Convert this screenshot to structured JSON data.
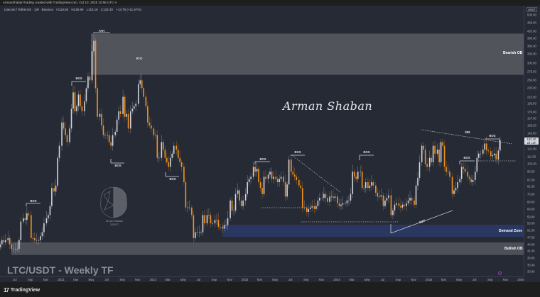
{
  "header": {
    "attribution": "ArmanShabanTrading created with TradingView.com, Oct 10, 2025 10:56 UTC-4",
    "symbol": "Litecoin / TetherUS · 1W · Binance",
    "open": "O118.85",
    "high": "H135.99",
    "low": "L115.16",
    "close": "C132.40",
    "change": "+13.75 (+11.57%)"
  },
  "chart_title": "LTC/USDT - Weekly TF",
  "watermark_signature": "Arman Shaban",
  "brand_logo": {
    "name": "Arman Shaban",
    "year": "2025 ©"
  },
  "footer": {
    "brand": "TradingView",
    "logo_glyph": "17"
  },
  "colors": {
    "background": "#262a35",
    "up": "#d1d4dc",
    "down": "#f7931a",
    "bearish_ob": "#5a5c63",
    "bullish_ob": "#55575e",
    "demand_zone": "#2b3a66"
  },
  "chart_data": {
    "type": "candlestick",
    "interval": "1W",
    "scale": "log",
    "currency": "USDT",
    "current_price": "132.40",
    "countdown": "2d 12h",
    "ylim": [
      33,
      500
    ],
    "y_ticks": [
      "500.00",
      "460.00",
      "420.00",
      "390.00",
      "360.00",
      "330.00",
      "300.00",
      "275.00",
      "250.00",
      "230.00",
      "210.00",
      "195.00",
      "179.00",
      "167.00",
      "155.00",
      "143.00",
      "121.00",
      "111.00",
      "103.00",
      "95.00",
      "87.00",
      "81.00",
      "75.00",
      "69.00",
      "64.00",
      "59.00",
      "55.00",
      "51.00",
      "47.50",
      "44.00",
      "41.00",
      "38.00",
      "35.40",
      "33.00"
    ],
    "x_ticks": [
      {
        "label": "Jul",
        "date": "2020-07"
      },
      {
        "label": "Sep",
        "date": "2020-09"
      },
      {
        "label": "Nov",
        "date": "2020-11"
      },
      {
        "label": "2021",
        "date": "2021-01"
      },
      {
        "label": "Mar",
        "date": "2021-03"
      },
      {
        "label": "May",
        "date": "2021-05"
      },
      {
        "label": "Jul",
        "date": "2021-07"
      },
      {
        "label": "Sep",
        "date": "2021-09"
      },
      {
        "label": "Nov",
        "date": "2021-11"
      },
      {
        "label": "2022",
        "date": "2022-01"
      },
      {
        "label": "Mar",
        "date": "2022-03"
      },
      {
        "label": "May",
        "date": "2022-05"
      },
      {
        "label": "Jul",
        "date": "2022-07"
      },
      {
        "label": "Sep",
        "date": "2022-09"
      },
      {
        "label": "Nov",
        "date": "2022-11"
      },
      {
        "label": "2023",
        "date": "2023-01"
      },
      {
        "label": "Mar",
        "date": "2023-03"
      },
      {
        "label": "May",
        "date": "2023-05"
      },
      {
        "label": "Jul",
        "date": "2023-07"
      },
      {
        "label": "Sep",
        "date": "2023-09"
      },
      {
        "label": "Nov",
        "date": "2023-11"
      },
      {
        "label": "2024",
        "date": "2024-01"
      },
      {
        "label": "Mar",
        "date": "2024-03"
      },
      {
        "label": "May",
        "date": "2024-05"
      },
      {
        "label": "Jul",
        "date": "2024-07"
      },
      {
        "label": "Sep",
        "date": "2024-09"
      },
      {
        "label": "Nov",
        "date": "2024-11"
      },
      {
        "label": "2025",
        "date": "2025-01"
      },
      {
        "label": "Mar",
        "date": "2025-03"
      },
      {
        "label": "May",
        "date": "2025-05"
      },
      {
        "label": "Jul",
        "date": "2025-07"
      },
      {
        "label": "Sep",
        "date": "2025-09"
      },
      {
        "label": "Nov",
        "date": "2025-11"
      },
      {
        "label": "2026",
        "date": "2026-01"
      }
    ],
    "weekly_closes_by_month": {
      "2020-05": [
        44,
        46,
        45,
        46
      ],
      "2020-06": [
        47,
        44,
        42,
        42
      ],
      "2020-07": [
        42,
        42,
        46,
        56
      ],
      "2020-08": [
        58,
        57,
        61,
        60
      ],
      "2020-09": [
        47,
        47,
        46,
        46
      ],
      "2020-10": [
        46,
        48,
        50,
        55
      ],
      "2020-11": [
        58,
        60,
        66,
        80
      ],
      "2020-12": [
        77,
        82,
        110,
        125
      ],
      "2021-01": [
        160,
        150,
        140,
        130
      ],
      "2021-02": [
        150,
        185,
        220,
        180
      ],
      "2021-03": [
        190,
        215,
        190,
        180
      ],
      "2021-04": [
        200,
        230,
        260,
        250
      ],
      "2021-05": [
        340,
        380,
        230,
        170
      ],
      "2021-06": [
        175,
        155,
        140,
        140
      ],
      "2021-07": [
        140,
        130,
        125,
        140
      ],
      "2021-08": [
        145,
        165,
        180,
        175
      ],
      "2021-09": [
        210,
        170,
        175,
        150
      ],
      "2021-10": [
        180,
        185,
        190,
        195
      ],
      "2021-11": [
        240,
        250,
        230,
        210
      ],
      "2021-12": [
        190,
        160,
        155,
        150
      ],
      "2022-01": [
        140,
        140,
        110,
        110
      ],
      "2022-02": [
        130,
        120,
        110,
        105
      ],
      "2022-03": [
        100,
        110,
        115,
        125
      ],
      "2022-04": [
        120,
        110,
        105,
        100
      ],
      "2022-05": [
        85,
        65,
        65,
        65
      ],
      "2022-06": [
        60,
        47,
        50,
        50
      ],
      "2022-07": [
        50,
        50,
        60,
        55
      ],
      "2022-08": [
        60,
        60,
        55,
        55
      ],
      "2022-09": [
        57,
        57,
        53,
        53
      ],
      "2022-10": [
        52,
        54,
        54,
        58
      ],
      "2022-11": [
        70,
        63,
        63,
        75
      ],
      "2022-12": [
        78,
        70,
        66,
        70
      ],
      "2023-01": [
        75,
        85,
        88,
        90
      ],
      "2023-02": [
        100,
        95,
        98,
        85
      ],
      "2023-03": [
        80,
        75,
        90,
        88
      ],
      "2023-04": [
        92,
        95,
        88,
        90
      ],
      "2023-05": [
        88,
        85,
        88,
        90
      ],
      "2023-06": [
        85,
        73,
        83,
        108
      ],
      "2023-07": [
        95,
        92,
        90,
        87
      ],
      "2023-08": [
        82,
        80,
        65,
        65
      ],
      "2023-09": [
        62,
        64,
        65,
        66
      ],
      "2023-10": [
        64,
        66,
        70,
        72
      ],
      "2023-11": [
        72,
        75,
        72,
        69
      ],
      "2023-12": [
        73,
        73,
        72,
        73
      ],
      "2024-01": [
        68,
        66,
        67,
        68
      ],
      "2024-02": [
        68,
        70,
        70,
        75
      ],
      "2024-03": [
        95,
        90,
        88,
        95
      ],
      "2024-04": [
        95,
        80,
        80,
        85
      ],
      "2024-05": [
        80,
        82,
        85,
        82
      ],
      "2024-06": [
        76,
        73,
        73,
        74
      ],
      "2024-07": [
        66,
        70,
        72,
        74
      ],
      "2024-08": [
        60,
        63,
        67,
        68
      ],
      "2024-09": [
        66,
        65,
        67,
        66
      ],
      "2024-10": [
        68,
        70,
        72,
        70
      ],
      "2024-11": [
        67,
        82,
        89,
        105
      ],
      "2024-12": [
        125,
        120,
        103,
        100
      ],
      "2025-01": [
        110,
        105,
        125,
        115
      ],
      "2025-02": [
        120,
        105,
        130,
        125
      ],
      "2025-03": [
        100,
        95,
        95,
        90
      ],
      "2025-04": [
        75,
        78,
        80,
        85
      ],
      "2025-05": [
        88,
        100,
        98,
        95
      ],
      "2025-06": [
        90,
        88,
        85,
        87
      ],
      "2025-07": [
        95,
        110,
        115,
        115
      ],
      "2025-08": [
        120,
        128,
        119,
        118
      ],
      "2025-09": [
        112,
        113,
        115,
        108
      ],
      "2025-10": [
        118.85,
        132.4
      ]
    },
    "zones": [
      {
        "label": "Bearish OB",
        "from": 265,
        "to": 410
      },
      {
        "label": "Demand Zone",
        "from": 47.7,
        "to": 54.2
      },
      {
        "label": "Bullish OB",
        "from": 39.3,
        "to": 44.9
      }
    ],
    "annotations": [
      "ATH",
      "RTO",
      "BOS",
      "$$$",
      "SMT"
    ]
  }
}
